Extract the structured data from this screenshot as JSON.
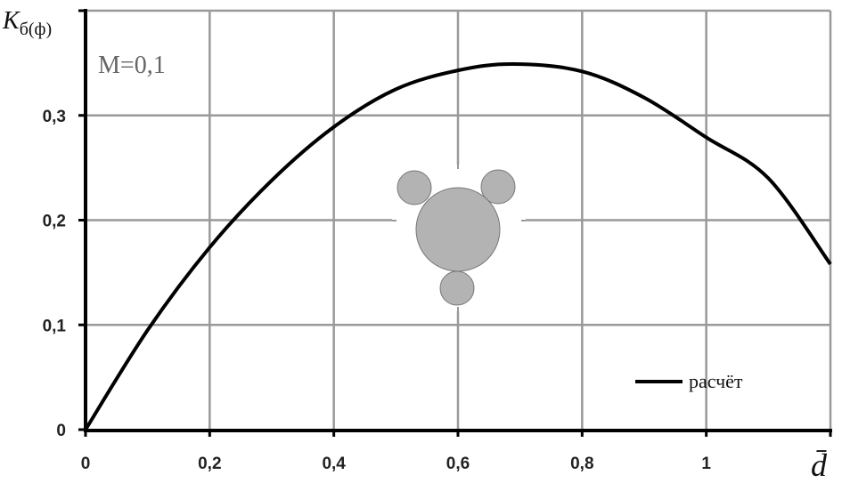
{
  "chart_data": {
    "type": "line",
    "title": "",
    "xlabel": "d̄",
    "ylabel_main": "K",
    "ylabel_sub": "б(ф)",
    "annotation": "M=0,1",
    "xlim": [
      0,
      1.2
    ],
    "ylim": [
      0,
      0.4
    ],
    "x_ticks": [
      0,
      0.2,
      0.4,
      0.6,
      0.8,
      1.0,
      1.2
    ],
    "x_tick_labels": [
      "0",
      "0,2",
      "0,4",
      "0,6",
      "0,8",
      "1",
      ""
    ],
    "y_ticks": [
      0,
      0.1,
      0.2,
      0.3,
      0.4
    ],
    "y_tick_labels": [
      "0",
      "0,1",
      "0,2",
      "0,3",
      ""
    ],
    "grid": true,
    "legend_position": "bottom-right",
    "series": [
      {
        "name": "расчёт",
        "color": "#000000",
        "x": [
          0,
          0.1,
          0.2,
          0.3,
          0.4,
          0.5,
          0.6,
          0.69,
          0.8,
          0.9,
          1.0,
          1.1,
          1.2
        ],
        "y": [
          0,
          0.095,
          0.174,
          0.238,
          0.289,
          0.325,
          0.343,
          0.349,
          0.342,
          0.317,
          0.279,
          0.24,
          0.158
        ]
      }
    ],
    "inset_icon": "molecule-circles-icon",
    "colors": {
      "grid": "#999999",
      "inset_fill": "#b3b3b3",
      "annotation": "#666666"
    }
  }
}
